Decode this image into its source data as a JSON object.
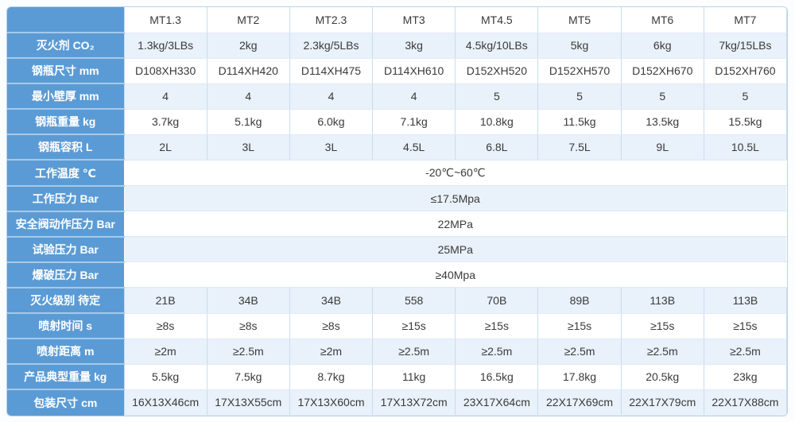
{
  "table": {
    "columns": [
      "MT1.3",
      "MT2",
      "MT2.3",
      "MT3",
      "MT4.5",
      "MT5",
      "MT6",
      "MT7"
    ],
    "rows": [
      {
        "label": "灭火剂 CO₂",
        "values": [
          "1.3kg/3LBs",
          "2kg",
          "2.3kg/5LBs",
          "3kg",
          "4.5kg/10LBs",
          "5kg",
          "6kg",
          "7kg/15LBs"
        ]
      },
      {
        "label": "钢瓶尺寸 mm",
        "values": [
          "D108XH330",
          "D114XH420",
          "D114XH475",
          "D114XH610",
          "D152XH520",
          "D152XH570",
          "D152XH670",
          "D152XH760"
        ]
      },
      {
        "label": "最小壁厚 mm",
        "values": [
          "4",
          "4",
          "4",
          "4",
          "5",
          "5",
          "5",
          "5"
        ]
      },
      {
        "label": "钢瓶重量 kg",
        "values": [
          "3.7kg",
          "5.1kg",
          "6.0kg",
          "7.1kg",
          "10.8kg",
          "11.5kg",
          "13.5kg",
          "15.5kg"
        ]
      },
      {
        "label": "钢瓶容积 L",
        "values": [
          "2L",
          "3L",
          "3L",
          "4.5L",
          "6.8L",
          "7.5L",
          "9L",
          "10.5L"
        ]
      },
      {
        "label": "工作温度 ℃",
        "span": "-20℃~60℃"
      },
      {
        "label": "工作压力 Bar",
        "span": "≤17.5Mpa"
      },
      {
        "label": "安全阀动作压力 Bar",
        "span": "22MPa"
      },
      {
        "label": "试验压力 Bar",
        "span": "25MPa"
      },
      {
        "label": "爆破压力 Bar",
        "span": "≥40Mpa"
      },
      {
        "label": "灭火级别 待定",
        "values": [
          "21B",
          "34B",
          "34B",
          "558",
          "70B",
          "89B",
          "113B",
          "113B"
        ]
      },
      {
        "label": "喷射时间 s",
        "values": [
          "≥8s",
          "≥8s",
          "≥8s",
          "≥15s",
          "≥15s",
          "≥15s",
          "≥15s",
          "≥15s"
        ]
      },
      {
        "label": "喷射距离 m",
        "values": [
          "≥2m",
          "≥2.5m",
          "≥2m",
          "≥2.5m",
          "≥2.5m",
          "≥2.5m",
          "≥2.5m",
          "≥2.5m"
        ]
      },
      {
        "label": "产品典型重量 kg",
        "values": [
          "5.5kg",
          "7.5kg",
          "8.7kg",
          "11kg",
          "16.5kg",
          "17.8kg",
          "20.5kg",
          "23kg"
        ]
      },
      {
        "label": "包装尺寸 cm",
        "values": [
          "16X13X46cm",
          "17X13X55cm",
          "17X13X60cm",
          "17X13X72cm",
          "23X17X64cm",
          "22X17X69cm",
          "22X17X79cm",
          "22X17X88cm"
        ]
      }
    ],
    "colors": {
      "accent": "#5b9bd5",
      "band": "#e9f1fa",
      "grid_vertical": "#c9dcef",
      "grid_horizontal": "#e0eaf5",
      "label_divider": "#a6c9ea",
      "outer_border": "#b9d3ea",
      "text": "#3a3a3a",
      "label_text": "#ffffff"
    }
  }
}
